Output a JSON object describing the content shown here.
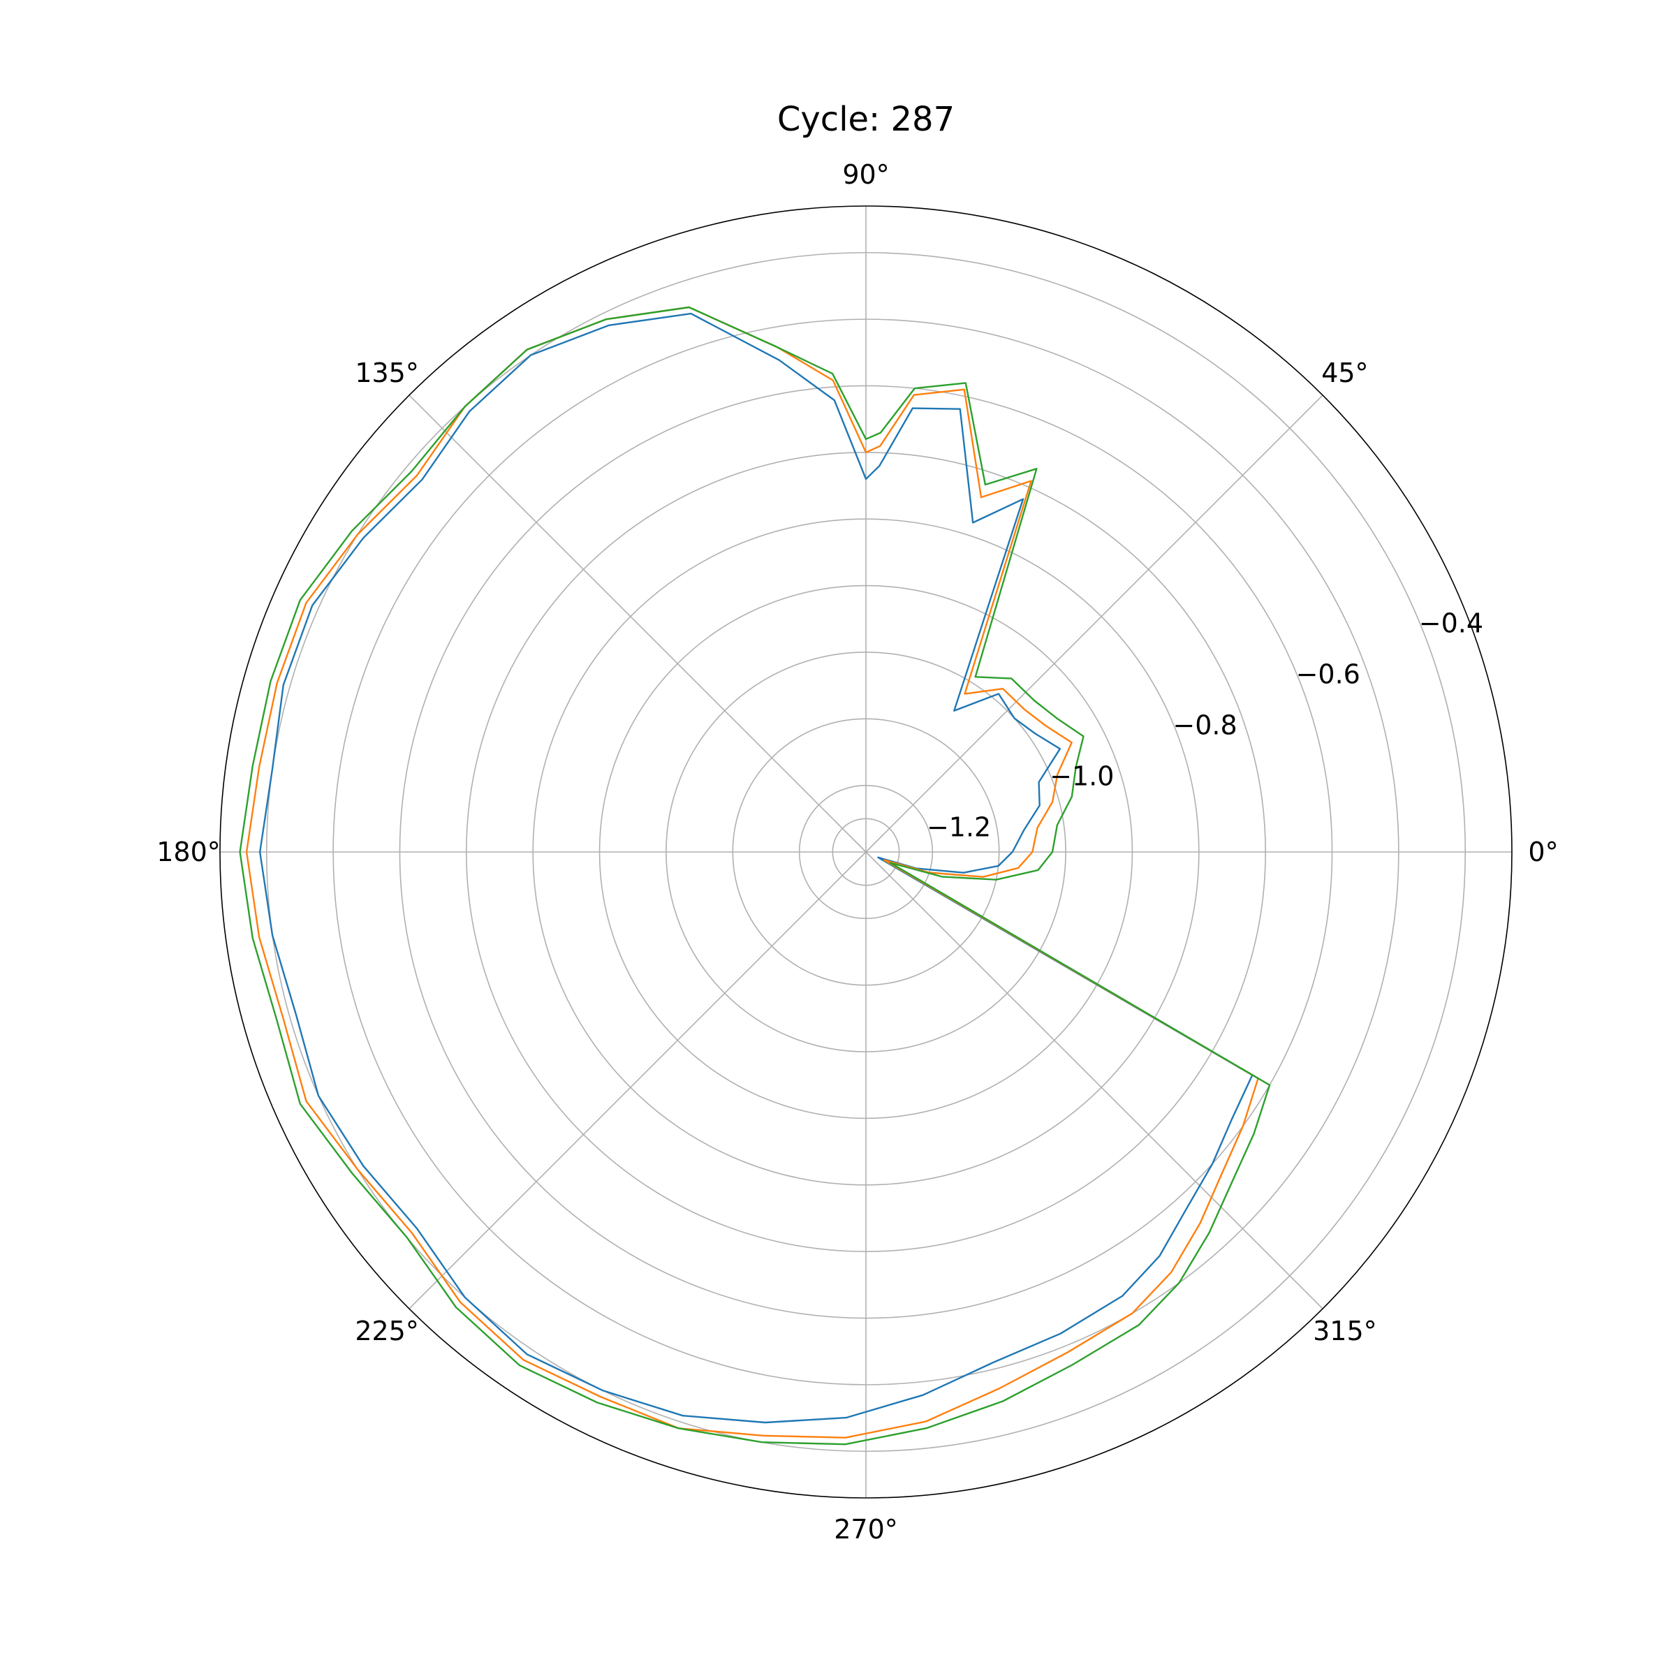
{
  "chart_data": {
    "type": "line",
    "projection": "polar",
    "title": "Cycle: 287",
    "theta_ticks": [
      "0°",
      "45°",
      "90°",
      "135°",
      "180°",
      "225°",
      "270°",
      "315°"
    ],
    "r_ticks": [
      -1.2,
      -1.0,
      -0.8,
      -0.6,
      -0.4
    ],
    "r_tick_labels": [
      "−1.2",
      "−1.0",
      "−0.8",
      "−0.6",
      "−0.4"
    ],
    "rlim": [
      -1.3,
      -0.33
    ],
    "r_label_angle_deg": 22.5,
    "grid": true,
    "colors": [
      "#1f77b4",
      "#ff7f0e",
      "#2ca02c"
    ],
    "series": [
      {
        "theta_deg": [
          0,
          8,
          15,
          22,
          28,
          35,
          42,
          50,
          58,
          66,
          72,
          78,
          84,
          88,
          90,
          94,
          100,
          108,
          116,
          124,
          132,
          140,
          148,
          156,
          164,
          172,
          180,
          188,
          196,
          204,
          212,
          220,
          228,
          236,
          244,
          252,
          260,
          268,
          276,
          284,
          292,
          300,
          306,
          312,
          318,
          324,
          330,
          336,
          342,
          348,
          354,
          360
        ],
        "r": [
          -1.08,
          -1.06,
          -1.03,
          -1.02,
          -0.97,
          -0.99,
          -1.0,
          -0.99,
          -1.05,
          -0.72,
          -0.78,
          -0.62,
          -0.63,
          -0.72,
          -0.74,
          -0.62,
          -0.55,
          -0.45,
          -0.42,
          -0.4,
          -0.41,
          -0.43,
          -0.41,
          -0.39,
          -0.39,
          -0.4,
          -0.39,
          -0.4,
          -0.41,
          -0.4,
          -0.41,
          -0.42,
          -0.4,
          -0.39,
          -0.4,
          -0.41,
          -0.43,
          -0.45,
          -0.48,
          -0.51,
          -0.52,
          -0.53,
          -0.55,
          -0.58,
          -0.6,
          -0.62,
          -0.63,
          -1.28,
          -1.22,
          -1.15,
          -1.1,
          -1.08
        ]
      },
      {
        "theta_deg": [
          0,
          8,
          15,
          22,
          28,
          35,
          42,
          50,
          58,
          66,
          72,
          78,
          84,
          88,
          90,
          94,
          100,
          108,
          116,
          124,
          132,
          140,
          148,
          156,
          164,
          172,
          180,
          188,
          196,
          204,
          212,
          220,
          228,
          236,
          244,
          252,
          260,
          268,
          276,
          284,
          292,
          300,
          306,
          312,
          318,
          324,
          330,
          336,
          342,
          348,
          354,
          360
        ],
        "r": [
          -1.05,
          -1.04,
          -1.01,
          -0.99,
          -0.95,
          -0.97,
          -0.98,
          -0.98,
          -1.02,
          -0.69,
          -0.74,
          -0.59,
          -0.61,
          -0.69,
          -0.7,
          -0.59,
          -0.53,
          -0.44,
          -0.41,
          -0.39,
          -0.4,
          -0.42,
          -0.4,
          -0.38,
          -0.38,
          -0.38,
          -0.37,
          -0.38,
          -0.39,
          -0.38,
          -0.4,
          -0.41,
          -0.39,
          -0.38,
          -0.39,
          -0.39,
          -0.41,
          -0.42,
          -0.44,
          -0.47,
          -0.49,
          -0.5,
          -0.52,
          -0.55,
          -0.58,
          -0.6,
          -0.62,
          -1.27,
          -1.2,
          -1.12,
          -1.07,
          -1.05
        ]
      },
      {
        "theta_deg": [
          0,
          8,
          15,
          22,
          28,
          35,
          42,
          50,
          58,
          66,
          72,
          78,
          84,
          88,
          90,
          94,
          100,
          108,
          116,
          124,
          132,
          140,
          148,
          156,
          164,
          172,
          180,
          188,
          196,
          204,
          212,
          220,
          228,
          236,
          244,
          252,
          260,
          268,
          276,
          284,
          292,
          300,
          306,
          312,
          318,
          324,
          330,
          336,
          342,
          348,
          354,
          360
        ],
        "r": [
          -1.02,
          -1.01,
          -0.98,
          -0.96,
          -0.93,
          -0.95,
          -0.96,
          -0.96,
          -0.99,
          -0.67,
          -0.72,
          -0.58,
          -0.6,
          -0.67,
          -0.68,
          -0.58,
          -0.53,
          -0.44,
          -0.41,
          -0.39,
          -0.4,
          -0.41,
          -0.39,
          -0.37,
          -0.37,
          -0.37,
          -0.36,
          -0.37,
          -0.38,
          -0.37,
          -0.39,
          -0.4,
          -0.38,
          -0.37,
          -0.38,
          -0.39,
          -0.4,
          -0.41,
          -0.43,
          -0.45,
          -0.47,
          -0.48,
          -0.5,
          -0.53,
          -0.56,
          -0.58,
          -0.6,
          -1.26,
          -1.18,
          -1.1,
          -1.04,
          -1.02
        ]
      }
    ]
  }
}
